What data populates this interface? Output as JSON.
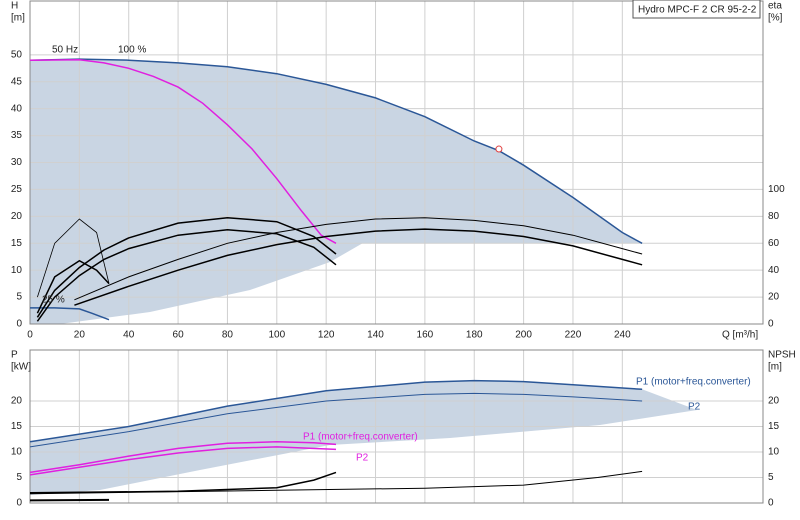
{
  "chart_data": [
    {
      "type": "line",
      "title": "Hydro MPC-F 2 CR 95-2-2",
      "y_label": [
        "H",
        "[m]"
      ],
      "y2_label": [
        "eta",
        "[%]"
      ],
      "x_label": "Q [m³/h]",
      "annotations": [
        "50 Hz",
        "100 %",
        "25 %"
      ],
      "xlim": [
        0,
        297
      ],
      "xticks": [
        0,
        20,
        40,
        60,
        80,
        100,
        120,
        140,
        160,
        180,
        200,
        220,
        240
      ],
      "ylim": [
        0,
        60
      ],
      "yticks": [
        0,
        5,
        10,
        15,
        20,
        25,
        30,
        35,
        40,
        45,
        50
      ],
      "y2lim": [
        0,
        240
      ],
      "y2ticks": [
        0,
        20,
        40,
        60,
        80,
        100
      ],
      "grid": true,
      "series": [
        {
          "name": "50 Hz",
          "color": "#2b5797",
          "width": 1.5,
          "x": [
            0,
            20,
            40,
            60,
            80,
            100,
            120,
            140,
            160,
            180,
            190,
            200,
            220,
            240,
            248
          ],
          "values": [
            49,
            49.2,
            49,
            48.5,
            47.8,
            46.5,
            44.5,
            42,
            38.5,
            34,
            32.2,
            29.5,
            23.5,
            17,
            15
          ]
        },
        {
          "name": "100 %",
          "color": "#e020e0",
          "width": 1.5,
          "x": [
            0,
            20,
            30,
            40,
            50,
            60,
            70,
            80,
            90,
            100,
            110,
            118,
            124
          ],
          "values": [
            49,
            49.1,
            48.5,
            47.5,
            46,
            44,
            41,
            37,
            32.5,
            27,
            21,
            16.5,
            15
          ]
        },
        {
          "name": "25 %",
          "color": "#2b5797",
          "width": 1.5,
          "x": [
            0,
            10,
            20,
            25,
            32
          ],
          "values": [
            3,
            3,
            2.8,
            2,
            0.8
          ]
        },
        {
          "color": "#000000",
          "width": 1,
          "axis": "y2",
          "x": [
            18,
            40,
            60,
            80,
            100,
            120,
            140,
            160,
            180,
            200,
            220,
            240,
            248
          ],
          "values": [
            18,
            35,
            48,
            60,
            68,
            74,
            78,
            79,
            77,
            73,
            66,
            56,
            52
          ]
        },
        {
          "color": "#000000",
          "width": 1.5,
          "axis": "y2",
          "x": [
            18,
            40,
            60,
            80,
            100,
            120,
            140,
            160,
            180,
            200,
            220,
            240,
            248
          ],
          "values": [
            14,
            28,
            40,
            51,
            59,
            65,
            69,
            70.5,
            69,
            65,
            58,
            48,
            44
          ]
        },
        {
          "color": "#000000",
          "width": 1.5,
          "axis": "y2",
          "x": [
            3,
            10,
            20,
            30,
            40,
            60,
            80,
            100,
            115,
            124
          ],
          "values": [
            5,
            25,
            42,
            55,
            64,
            75,
            79,
            76,
            65,
            52
          ]
        },
        {
          "color": "#000000",
          "width": 1.5,
          "axis": "y2",
          "x": [
            3,
            10,
            20,
            30,
            40,
            60,
            80,
            100,
            115,
            124
          ],
          "values": [
            2,
            20,
            36,
            48,
            56,
            66,
            70,
            67,
            57,
            44
          ]
        },
        {
          "color": "#000000",
          "width": 1.5,
          "axis": "y2",
          "x": [
            3,
            10,
            20,
            27,
            32
          ],
          "values": [
            8,
            35,
            47,
            40,
            30
          ]
        },
        {
          "color": "#000000",
          "width": 0.8,
          "axis": "y2",
          "x": [
            3,
            10,
            20,
            27,
            32
          ],
          "values": [
            20,
            60,
            78,
            68,
            30
          ]
        }
      ],
      "points": {
        "color": "#e04040",
        "x": [
          190
        ],
        "values": [
          32.5
        ]
      }
    },
    {
      "type": "line",
      "y_label": [
        "P",
        "[kW]"
      ],
      "y2_label": [
        "NPSH",
        "[m]"
      ],
      "xlim": [
        0,
        297
      ],
      "xticks": [
        0,
        20,
        40,
        60,
        80,
        100,
        120,
        140,
        160,
        180,
        200,
        220,
        240
      ],
      "ylim": [
        0,
        30
      ],
      "yticks": [
        0,
        5,
        10,
        15,
        20
      ],
      "y2lim": [
        0,
        30
      ],
      "y2ticks": [
        0,
        5,
        10,
        15,
        20
      ],
      "grid": true,
      "series": [
        {
          "name": "P1 (motor+freq.converter)",
          "color": "#2b5797",
          "width": 1.5,
          "x": [
            0,
            40,
            80,
            120,
            160,
            180,
            200,
            220,
            248
          ],
          "values": [
            12,
            15,
            19,
            22,
            23.7,
            24,
            23.8,
            23.2,
            22.3
          ]
        },
        {
          "name": "P2",
          "color": "#2b5797",
          "width": 1,
          "x": [
            0,
            40,
            80,
            120,
            160,
            180,
            200,
            220,
            248
          ],
          "values": [
            11,
            14,
            17.5,
            20,
            21.3,
            21.5,
            21.3,
            20.8,
            20
          ]
        },
        {
          "name": "P1 (motor+freq.converter)",
          "color": "#e020e0",
          "width": 1.5,
          "x": [
            0,
            20,
            40,
            60,
            80,
            100,
            115,
            124
          ],
          "values": [
            6,
            7.5,
            9.2,
            10.7,
            11.7,
            12,
            11.8,
            11.5
          ]
        },
        {
          "name": "P2",
          "color": "#e020e0",
          "width": 1.5,
          "x": [
            0,
            20,
            40,
            60,
            80,
            100,
            124
          ],
          "values": [
            5.5,
            7,
            8.5,
            9.8,
            10.7,
            11,
            10.5
          ]
        },
        {
          "color": "#000000",
          "width": 1,
          "axis": "y2",
          "x": [
            0,
            100,
            160,
            200,
            230,
            248
          ],
          "values": [
            1.8,
            2.5,
            2.9,
            3.5,
            5,
            6.2
          ]
        },
        {
          "color": "#000000",
          "width": 1.5,
          "axis": "y2",
          "x": [
            0,
            60,
            100,
            115,
            124
          ],
          "values": [
            2,
            2.3,
            3,
            4.5,
            6
          ]
        },
        {
          "color": "#000000",
          "width": 2,
          "axis": "y2",
          "x": [
            0,
            32
          ],
          "values": [
            0.5,
            0.6
          ]
        }
      ]
    }
  ]
}
